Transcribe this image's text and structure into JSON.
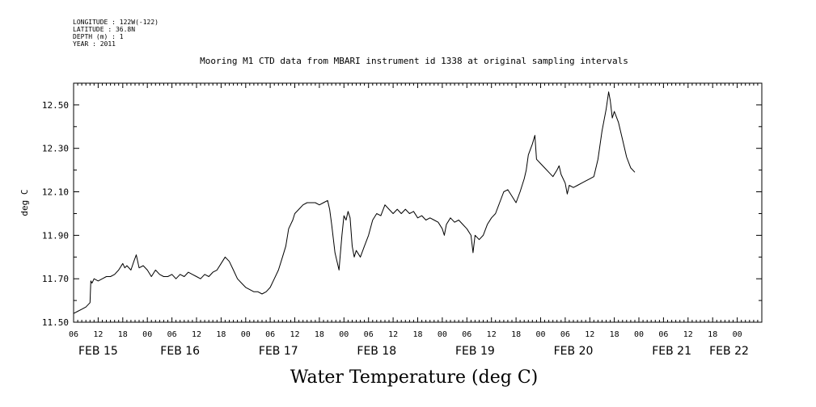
{
  "meta": {
    "longitude": "LONGITUDE : 122W(-122)",
    "latitude": "LATITUDE : 36.8N",
    "depth": "DEPTH (m) : 1",
    "year": "YEAR : 2011"
  },
  "chart_data": {
    "type": "line",
    "title": "Mooring M1 CTD data from MBARI instrument id 1338 at original sampling intervals",
    "xlabel": "Water Temperature (deg C)",
    "ylabel": "deg C",
    "ylim": [
      11.5,
      12.6
    ],
    "yticks": [
      "11.50",
      "11.70",
      "11.90",
      "12.10",
      "12.30",
      "12.50"
    ],
    "x_unit": "hours since FEB 15 00:00",
    "xlim": [
      6,
      174
    ],
    "hour_ticks": [
      "06",
      "12",
      "18",
      "00",
      "06",
      "12",
      "18",
      "00",
      "06",
      "12",
      "18",
      "00",
      "06",
      "12",
      "18",
      "00",
      "06",
      "12",
      "18",
      "00",
      "06",
      "12",
      "18",
      "00",
      "06",
      "12",
      "18",
      "00"
    ],
    "date_labels": [
      "FEB 15",
      "FEB 16",
      "FEB 17",
      "FEB 18",
      "FEB 19",
      "FEB 20",
      "FEB 21",
      "FEB 22"
    ],
    "date_label_hours": [
      12,
      32,
      56,
      80,
      104,
      128,
      152,
      166
    ],
    "grid": false,
    "series": [
      {
        "points": [
          [
            6,
            11.54
          ],
          [
            7,
            11.55
          ],
          [
            8,
            11.56
          ],
          [
            9,
            11.57
          ],
          [
            10,
            11.59
          ],
          [
            10.2,
            11.69
          ],
          [
            10.5,
            11.68
          ],
          [
            11,
            11.7
          ],
          [
            12,
            11.69
          ],
          [
            13,
            11.7
          ],
          [
            14,
            11.71
          ],
          [
            15,
            11.71
          ],
          [
            16,
            11.72
          ],
          [
            17,
            11.74
          ],
          [
            18,
            11.77
          ],
          [
            18.5,
            11.75
          ],
          [
            19,
            11.76
          ],
          [
            20,
            11.74
          ],
          [
            20.7,
            11.78
          ],
          [
            21.3,
            11.81
          ],
          [
            22,
            11.75
          ],
          [
            23,
            11.76
          ],
          [
            24,
            11.74
          ],
          [
            25,
            11.71
          ],
          [
            26,
            11.74
          ],
          [
            27,
            11.72
          ],
          [
            28,
            11.71
          ],
          [
            29,
            11.71
          ],
          [
            30,
            11.72
          ],
          [
            31,
            11.7
          ],
          [
            32,
            11.72
          ],
          [
            33,
            11.71
          ],
          [
            34,
            11.73
          ],
          [
            35,
            11.72
          ],
          [
            36,
            11.71
          ],
          [
            37,
            11.7
          ],
          [
            38,
            11.72
          ],
          [
            39,
            11.71
          ],
          [
            40,
            11.73
          ],
          [
            41,
            11.74
          ],
          [
            42,
            11.77
          ],
          [
            43,
            11.8
          ],
          [
            44,
            11.78
          ],
          [
            45,
            11.74
          ],
          [
            46,
            11.7
          ],
          [
            47,
            11.68
          ],
          [
            48,
            11.66
          ],
          [
            49,
            11.65
          ],
          [
            50,
            11.64
          ],
          [
            51,
            11.64
          ],
          [
            52,
            11.63
          ],
          [
            53,
            11.64
          ],
          [
            54,
            11.66
          ],
          [
            55,
            11.7
          ],
          [
            56,
            11.74
          ],
          [
            57,
            11.8
          ],
          [
            57.8,
            11.85
          ],
          [
            58.5,
            11.93
          ],
          [
            59.5,
            11.97
          ],
          [
            60,
            12.0
          ],
          [
            61,
            12.02
          ],
          [
            62,
            12.04
          ],
          [
            63,
            12.05
          ],
          [
            64,
            12.05
          ],
          [
            65,
            12.05
          ],
          [
            66,
            12.04
          ],
          [
            67,
            12.05
          ],
          [
            68,
            12.06
          ],
          [
            68.5,
            12.02
          ],
          [
            69,
            11.95
          ],
          [
            69.8,
            11.82
          ],
          [
            70.8,
            11.74
          ],
          [
            71,
            11.79
          ],
          [
            71.5,
            11.9
          ],
          [
            72,
            11.99
          ],
          [
            72.5,
            11.97
          ],
          [
            73,
            12.01
          ],
          [
            73.5,
            11.98
          ],
          [
            74,
            11.85
          ],
          [
            74.5,
            11.8
          ],
          [
            75,
            11.83
          ],
          [
            76,
            11.8
          ],
          [
            77,
            11.85
          ],
          [
            78,
            11.9
          ],
          [
            79,
            11.97
          ],
          [
            80,
            12.0
          ],
          [
            81,
            11.99
          ],
          [
            82,
            12.04
          ],
          [
            83,
            12.02
          ],
          [
            84,
            12.0
          ],
          [
            85,
            12.02
          ],
          [
            86,
            12.0
          ],
          [
            87,
            12.02
          ],
          [
            88,
            12.0
          ],
          [
            89,
            12.01
          ],
          [
            90,
            11.98
          ],
          [
            91,
            11.99
          ],
          [
            92,
            11.97
          ],
          [
            93,
            11.98
          ],
          [
            94,
            11.97
          ],
          [
            95,
            11.96
          ],
          [
            96,
            11.93
          ],
          [
            96.5,
            11.9
          ],
          [
            97,
            11.95
          ],
          [
            98,
            11.98
          ],
          [
            99,
            11.96
          ],
          [
            100,
            11.97
          ],
          [
            101,
            11.95
          ],
          [
            102,
            11.93
          ],
          [
            103,
            11.9
          ],
          [
            103.5,
            11.82
          ],
          [
            104,
            11.9
          ],
          [
            105,
            11.88
          ],
          [
            106,
            11.9
          ],
          [
            107,
            11.95
          ],
          [
            108,
            11.98
          ],
          [
            109,
            12.0
          ],
          [
            110,
            12.05
          ],
          [
            111,
            12.1
          ],
          [
            112,
            12.11
          ],
          [
            113,
            12.08
          ],
          [
            114,
            12.05
          ],
          [
            115,
            12.1
          ],
          [
            116,
            12.16
          ],
          [
            116.5,
            12.2
          ],
          [
            117,
            12.27
          ],
          [
            118,
            12.32
          ],
          [
            118.6,
            12.36
          ],
          [
            119,
            12.25
          ],
          [
            120,
            12.23
          ],
          [
            121,
            12.21
          ],
          [
            122,
            12.19
          ],
          [
            123,
            12.17
          ],
          [
            124,
            12.2
          ],
          [
            124.5,
            12.22
          ],
          [
            125,
            12.18
          ],
          [
            126,
            12.14
          ],
          [
            126.5,
            12.09
          ],
          [
            127,
            12.13
          ],
          [
            128,
            12.12
          ],
          [
            129,
            12.13
          ],
          [
            130,
            12.14
          ],
          [
            131,
            12.15
          ],
          [
            132,
            12.16
          ],
          [
            133,
            12.17
          ],
          [
            134,
            12.25
          ],
          [
            135,
            12.38
          ],
          [
            136,
            12.48
          ],
          [
            136.6,
            12.56
          ],
          [
            137,
            12.52
          ],
          [
            137.5,
            12.44
          ],
          [
            138,
            12.47
          ],
          [
            139,
            12.42
          ],
          [
            140,
            12.34
          ],
          [
            141,
            12.26
          ],
          [
            142,
            12.21
          ],
          [
            143,
            12.19
          ]
        ]
      }
    ]
  }
}
